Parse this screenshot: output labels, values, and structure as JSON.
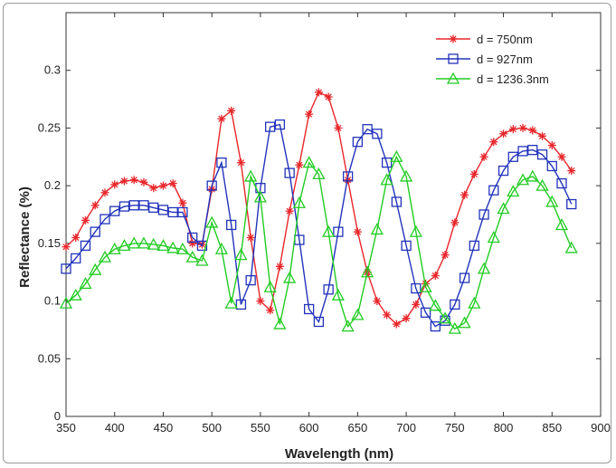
{
  "chart_data": {
    "type": "line",
    "title": "",
    "xlabel": "Wavelength (nm)",
    "ylabel": "Reflectance (%)",
    "xlim": [
      350,
      900
    ],
    "ylim": [
      0,
      0.35
    ],
    "x_ticks": [
      350,
      400,
      450,
      500,
      550,
      600,
      650,
      700,
      750,
      800,
      850,
      900
    ],
    "y_ticks": [
      0,
      0.05,
      0.1,
      0.15,
      0.2,
      0.25,
      0.3
    ],
    "y_tick_labels": [
      "0",
      "0.05",
      "0.1",
      "0.15",
      "0.2",
      "0.25",
      "0.3"
    ],
    "x_tick_labels": [
      "350",
      "400",
      "450",
      "500",
      "550",
      "600",
      "650",
      "700",
      "750",
      "800",
      "850",
      "900"
    ],
    "grid": false,
    "legend_position": "top-right",
    "series": [
      {
        "name": "d = 750nm",
        "color": "#e8262b",
        "marker": "asterisk",
        "x": [
          350,
          360,
          370,
          380,
          390,
          400,
          410,
          420,
          430,
          440,
          450,
          460,
          470,
          480,
          490,
          500,
          510,
          520,
          530,
          540,
          550,
          560,
          570,
          580,
          590,
          600,
          610,
          620,
          630,
          640,
          650,
          660,
          670,
          680,
          690,
          700,
          710,
          720,
          730,
          740,
          750,
          760,
          770,
          780,
          790,
          800,
          810,
          820,
          830,
          840,
          850,
          860,
          870
        ],
        "y": [
          0.147,
          0.155,
          0.17,
          0.183,
          0.194,
          0.201,
          0.204,
          0.205,
          0.203,
          0.198,
          0.2,
          0.202,
          0.185,
          0.15,
          0.149,
          0.197,
          0.258,
          0.265,
          0.22,
          0.155,
          0.1,
          0.092,
          0.13,
          0.178,
          0.218,
          0.262,
          0.281,
          0.277,
          0.25,
          0.205,
          0.16,
          0.125,
          0.1,
          0.088,
          0.08,
          0.085,
          0.097,
          0.115,
          0.122,
          0.14,
          0.168,
          0.192,
          0.21,
          0.225,
          0.238,
          0.245,
          0.249,
          0.25,
          0.248,
          0.243,
          0.235,
          0.225,
          0.213
        ]
      },
      {
        "name": "d = 927nm",
        "color": "#2233bb",
        "marker": "square",
        "x": [
          350,
          360,
          370,
          380,
          390,
          400,
          410,
          420,
          430,
          440,
          450,
          460,
          470,
          480,
          490,
          500,
          510,
          520,
          530,
          540,
          550,
          560,
          570,
          580,
          590,
          600,
          610,
          620,
          630,
          640,
          650,
          660,
          670,
          680,
          690,
          700,
          710,
          720,
          730,
          740,
          750,
          760,
          770,
          780,
          790,
          800,
          810,
          820,
          830,
          840,
          850,
          860,
          870
        ],
        "y": [
          0.128,
          0.137,
          0.148,
          0.16,
          0.171,
          0.178,
          0.182,
          0.183,
          0.183,
          0.181,
          0.179,
          0.177,
          0.177,
          0.155,
          0.148,
          0.2,
          0.22,
          0.166,
          0.097,
          0.118,
          0.198,
          0.251,
          0.253,
          0.211,
          0.153,
          0.093,
          0.082,
          0.11,
          0.16,
          0.208,
          0.238,
          0.249,
          0.245,
          0.22,
          0.186,
          0.148,
          0.111,
          0.09,
          0.078,
          0.083,
          0.097,
          0.12,
          0.148,
          0.175,
          0.196,
          0.213,
          0.225,
          0.23,
          0.231,
          0.227,
          0.217,
          0.202,
          0.184
        ]
      },
      {
        "name": "d = 1236.3nm",
        "color": "#22cc22",
        "marker": "triangle",
        "x": [
          350,
          360,
          370,
          380,
          390,
          400,
          410,
          420,
          430,
          440,
          450,
          460,
          470,
          480,
          490,
          500,
          510,
          520,
          530,
          540,
          550,
          560,
          570,
          580,
          590,
          600,
          610,
          620,
          630,
          640,
          650,
          660,
          670,
          680,
          690,
          700,
          710,
          720,
          730,
          740,
          750,
          760,
          770,
          780,
          790,
          800,
          810,
          820,
          830,
          840,
          850,
          860,
          870
        ],
        "y": [
          0.098,
          0.105,
          0.115,
          0.127,
          0.138,
          0.145,
          0.148,
          0.15,
          0.15,
          0.149,
          0.148,
          0.146,
          0.145,
          0.138,
          0.135,
          0.168,
          0.145,
          0.098,
          0.14,
          0.208,
          0.19,
          0.112,
          0.08,
          0.12,
          0.185,
          0.22,
          0.21,
          0.16,
          0.105,
          0.078,
          0.088,
          0.125,
          0.162,
          0.205,
          0.225,
          0.208,
          0.16,
          0.112,
          0.096,
          0.085,
          0.076,
          0.081,
          0.098,
          0.128,
          0.155,
          0.18,
          0.195,
          0.205,
          0.208,
          0.2,
          0.186,
          0.166,
          0.146
        ]
      }
    ]
  }
}
